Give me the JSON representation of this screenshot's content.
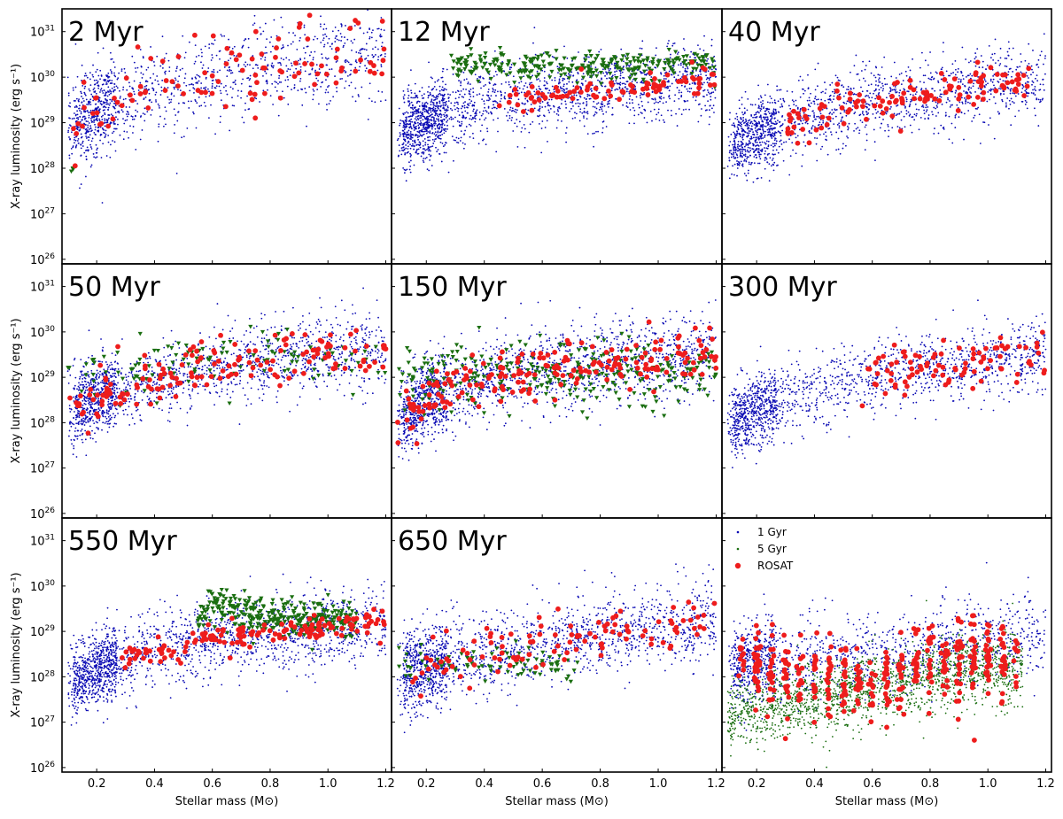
{
  "chart_data": {
    "type": "scatter",
    "layout": "3x3 grid of panels, shared axes",
    "xlabel": "Stellar mass (M⊙)",
    "ylabel": "X-ray luminosity (erg s⁻¹)",
    "xlim": [
      0.08,
      1.22
    ],
    "ylim_log10": [
      25.9,
      31.5
    ],
    "yscale": "log",
    "x_ticks": [
      0.2,
      0.4,
      0.6,
      0.8,
      1.0,
      1.2
    ],
    "x_tick_labels": [
      "0.2",
      "0.4",
      "0.6",
      "0.8",
      "1.0",
      "1.2"
    ],
    "y_ticks_log10": [
      26,
      27,
      28,
      29,
      30,
      31
    ],
    "y_tick_labels": [
      "10",
      "10",
      "10",
      "10",
      "10",
      "10"
    ],
    "y_tick_exponents": [
      "26",
      "27",
      "28",
      "29",
      "30",
      "31"
    ],
    "grid": false,
    "colors": {
      "blue": "#0a0ab4",
      "green": "#1a6e10",
      "red": "#ee1c1c"
    },
    "legend": {
      "location": "top-left of bottom-right panel",
      "entries": [
        {
          "label": "1 Gyr",
          "color": "#0a0ab4",
          "marker": "dot"
        },
        {
          "label": "5 Gyr",
          "color": "#1a6e10",
          "marker": "dot"
        },
        {
          "label": "ROSAT",
          "color": "#ee1c1c",
          "marker": "circle"
        }
      ]
    },
    "panels": [
      {
        "label": "2 Myr",
        "blue_trend": [
          [
            0.1,
            28.9
          ],
          [
            0.2,
            29.3
          ],
          [
            0.4,
            29.7
          ],
          [
            0.6,
            30.0
          ],
          [
            0.8,
            30.2
          ],
          [
            1.0,
            30.35
          ],
          [
            1.2,
            30.4
          ]
        ],
        "blue_scatter": 0.5,
        "blue_n": 1300,
        "blue_xmax": 1.2,
        "green_n": 3,
        "red_n": 100,
        "red_scatter": 0.45,
        "red_xmax": 1.2
      },
      {
        "label": "12 Myr",
        "blue_trend": [
          [
            0.1,
            28.8
          ],
          [
            0.2,
            29.0
          ],
          [
            0.3,
            29.3
          ],
          [
            0.4,
            29.5
          ],
          [
            0.6,
            29.6
          ],
          [
            0.8,
            29.7
          ],
          [
            1.0,
            29.85
          ],
          [
            1.2,
            30.0
          ]
        ],
        "blue_scatter": 0.4,
        "blue_n": 1900,
        "blue_xmax": 1.2,
        "green_trend": [
          [
            0.3,
            30.3
          ],
          [
            0.5,
            30.25
          ],
          [
            0.7,
            30.2
          ],
          [
            0.9,
            30.25
          ],
          [
            1.1,
            30.3
          ]
        ],
        "green_scatter": 0.15,
        "green_n": 280,
        "green_xmin": 0.28,
        "red_n": 90,
        "red_scatter": 0.15,
        "red_xmin": 0.45,
        "red_anchor": [
          1.1,
          30.3
        ]
      },
      {
        "label": "40 Myr",
        "blue_trend": [
          [
            0.1,
            28.5
          ],
          [
            0.2,
            28.8
          ],
          [
            0.4,
            29.2
          ],
          [
            0.6,
            29.45
          ],
          [
            0.8,
            29.6
          ],
          [
            1.0,
            29.8
          ],
          [
            1.2,
            29.95
          ]
        ],
        "blue_scatter": 0.4,
        "blue_n": 1600,
        "blue_xmax": 1.2,
        "green_n": 0,
        "red_n": 120,
        "red_scatter": 0.2,
        "red_xmin": 0.3,
        "red_xmax": 1.15
      },
      {
        "label": "50 Myr",
        "blue_trend": [
          [
            0.1,
            28.3
          ],
          [
            0.2,
            28.6
          ],
          [
            0.4,
            28.95
          ],
          [
            0.6,
            29.2
          ],
          [
            0.8,
            29.4
          ],
          [
            1.0,
            29.55
          ],
          [
            1.2,
            29.6
          ]
        ],
        "blue_scatter": 0.4,
        "blue_n": 1700,
        "blue_xmax": 1.2,
        "green_trend": [
          [
            0.15,
            29.2
          ],
          [
            0.5,
            29.3
          ],
          [
            0.8,
            29.5
          ],
          [
            1.2,
            29.4
          ]
        ],
        "green_scatter": 0.3,
        "green_n": 120,
        "red_n": 160,
        "red_scatter": 0.3,
        "red_xmax": 1.2
      },
      {
        "label": "150 Myr",
        "blue_trend": [
          [
            0.1,
            28.0
          ],
          [
            0.2,
            28.5
          ],
          [
            0.4,
            28.9
          ],
          [
            0.6,
            29.2
          ],
          [
            0.8,
            29.3
          ],
          [
            1.0,
            29.45
          ],
          [
            1.2,
            29.55
          ]
        ],
        "blue_scatter": 0.45,
        "blue_n": 1800,
        "blue_xmax": 1.2,
        "green_trend": [
          [
            0.15,
            28.9
          ],
          [
            0.2,
            29.0
          ],
          [
            0.4,
            29.1
          ],
          [
            0.6,
            29.15
          ],
          [
            0.9,
            29.0
          ],
          [
            1.2,
            29.1
          ]
        ],
        "green_scatter": 0.35,
        "green_n": 300,
        "red_n": 200,
        "red_scatter": 0.3,
        "red_xmax": 1.2
      },
      {
        "label": "300 Myr",
        "blue_trend": [
          [
            0.1,
            27.9
          ],
          [
            0.2,
            28.3
          ],
          [
            0.4,
            28.65
          ],
          [
            0.6,
            29.0
          ],
          [
            0.8,
            29.2
          ],
          [
            1.0,
            29.35
          ],
          [
            1.2,
            29.5
          ]
        ],
        "blue_scatter": 0.4,
        "blue_n": 1600,
        "blue_xmax": 1.2,
        "green_n": 0,
        "red_n": 90,
        "red_scatter": 0.25,
        "red_xmin": 0.55,
        "red_xmax": 1.2
      },
      {
        "label": "550 Myr",
        "blue_trend": [
          [
            0.1,
            27.8
          ],
          [
            0.2,
            28.2
          ],
          [
            0.4,
            28.6
          ],
          [
            0.6,
            28.85
          ],
          [
            0.8,
            29.0
          ],
          [
            1.0,
            29.1
          ],
          [
            1.2,
            29.2
          ]
        ],
        "blue_scatter": 0.4,
        "blue_n": 1900,
        "blue_xmax": 1.2,
        "green_trend": [
          [
            0.55,
            29.35
          ],
          [
            0.6,
            29.6
          ],
          [
            0.7,
            29.4
          ],
          [
            0.9,
            29.3
          ],
          [
            1.1,
            29.2
          ]
        ],
        "green_scatter": 0.22,
        "green_n": 320,
        "green_xmin": 0.55,
        "green_xmax": 1.1,
        "red_n": 150,
        "red_scatter": 0.15,
        "red_xmin": 0.28,
        "red_xmax": 1.2
      },
      {
        "label": "650 Myr",
        "blue_trend": [
          [
            0.1,
            28.0
          ],
          [
            0.2,
            28.2
          ],
          [
            0.4,
            28.5
          ],
          [
            0.6,
            28.75
          ],
          [
            0.8,
            28.95
          ],
          [
            1.0,
            29.1
          ],
          [
            1.2,
            29.2
          ]
        ],
        "blue_scatter": 0.45,
        "blue_n": 1700,
        "blue_xmax": 1.2,
        "green_trend": [
          [
            0.2,
            28.3
          ],
          [
            0.5,
            28.3
          ],
          [
            0.7,
            28.25
          ]
        ],
        "green_scatter": 0.2,
        "green_n": 80,
        "green_xmax": 0.75,
        "red_n": 110,
        "red_scatter": 0.3,
        "red_xmax": 1.2
      },
      {
        "label": "",
        "blue_trend": [
          [
            0.15,
            28.3
          ],
          [
            0.4,
            28.4
          ],
          [
            0.6,
            28.5
          ],
          [
            0.8,
            28.7
          ],
          [
            1.0,
            28.8
          ],
          [
            1.2,
            28.9
          ]
        ],
        "blue_scatter": 0.45,
        "blue_n": 1300,
        "blue_xmax": 1.2,
        "green_trend": [
          [
            0.1,
            27.2
          ],
          [
            0.3,
            27.4
          ],
          [
            0.5,
            27.6
          ],
          [
            0.7,
            27.9
          ],
          [
            0.9,
            28.1
          ],
          [
            1.1,
            28.2
          ]
        ],
        "green_scatter": 0.4,
        "green_n": 1800,
        "green_dot": true,
        "green_xmax": 1.12,
        "red_trend": [
          [
            0.15,
            28.2
          ],
          [
            0.4,
            27.9
          ],
          [
            0.6,
            28.0
          ],
          [
            0.8,
            28.3
          ],
          [
            1.0,
            28.5
          ],
          [
            1.1,
            28.4
          ]
        ],
        "red_n": 420,
        "red_scatter": 0.45,
        "red_xmax": 1.1,
        "red_columns": true
      }
    ]
  }
}
